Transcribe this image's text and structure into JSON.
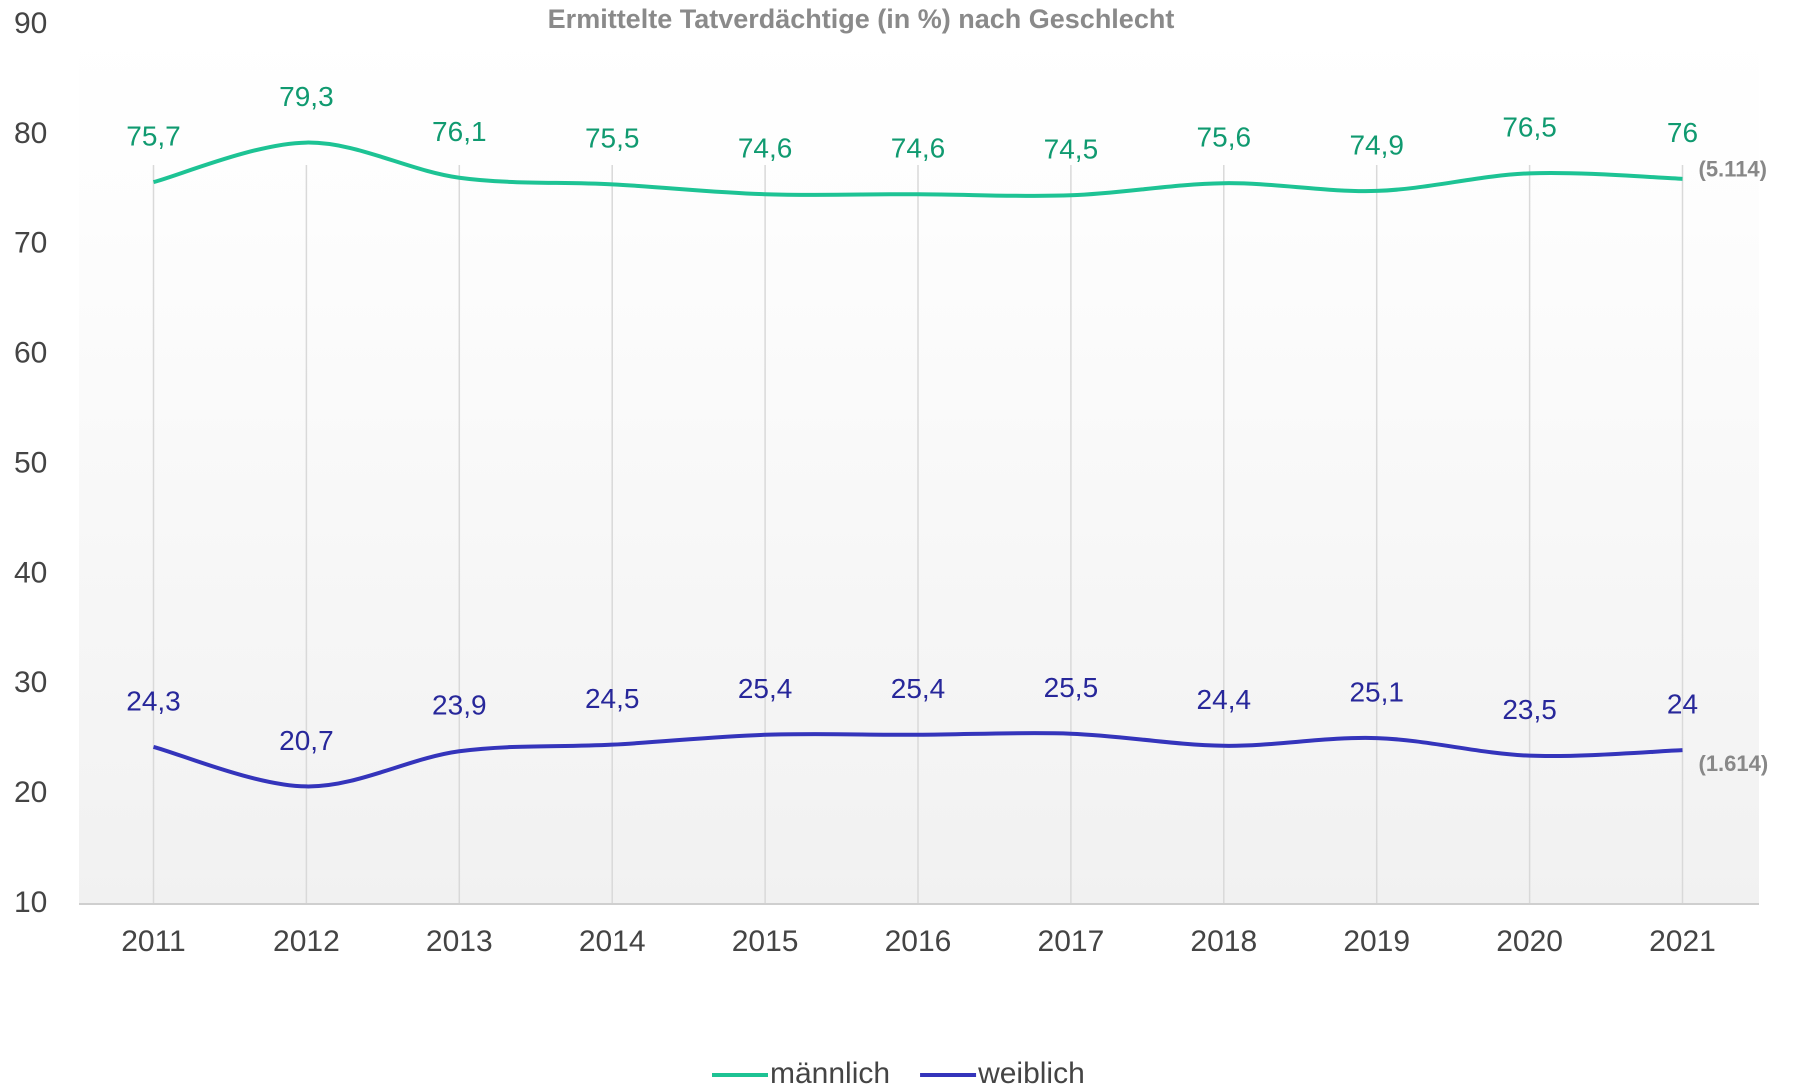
{
  "chart_data": {
    "type": "line",
    "title": "Ermittelte Tatverdächtige (in %) nach Geschlecht",
    "categories": [
      "2011",
      "2012",
      "2013",
      "2014",
      "2015",
      "2016",
      "2017",
      "2018",
      "2019",
      "2020",
      "2021"
    ],
    "series": [
      {
        "name": "männlich",
        "color": "#1dc394",
        "label_color": "#109a70",
        "values": [
          75.7,
          79.3,
          76.1,
          75.5,
          74.6,
          74.6,
          74.5,
          75.6,
          74.9,
          76.5,
          76
        ],
        "value_labels": [
          "75,7",
          "79,3",
          "76,1",
          "75,5",
          "74,6",
          "74,6",
          "74,5",
          "75,6",
          "74,9",
          "76,5",
          "76"
        ],
        "annotation": "(5.114)"
      },
      {
        "name": "weiblich",
        "color": "#3434bb",
        "label_color": "#27279a",
        "values": [
          24.3,
          20.7,
          23.9,
          24.5,
          25.4,
          25.4,
          25.5,
          24.4,
          25.1,
          23.5,
          24
        ],
        "value_labels": [
          "24,3",
          "20,7",
          "23,9",
          "24,5",
          "25,4",
          "25,4",
          "25,5",
          "24,4",
          "25,1",
          "23,5",
          "24"
        ],
        "annotation": "(1.614)"
      }
    ],
    "ylim": [
      10,
      90
    ],
    "yticks": [
      10,
      20,
      30,
      40,
      50,
      60,
      70,
      80,
      90
    ],
    "grid": "x",
    "legend": "bottom",
    "smooth": true
  }
}
